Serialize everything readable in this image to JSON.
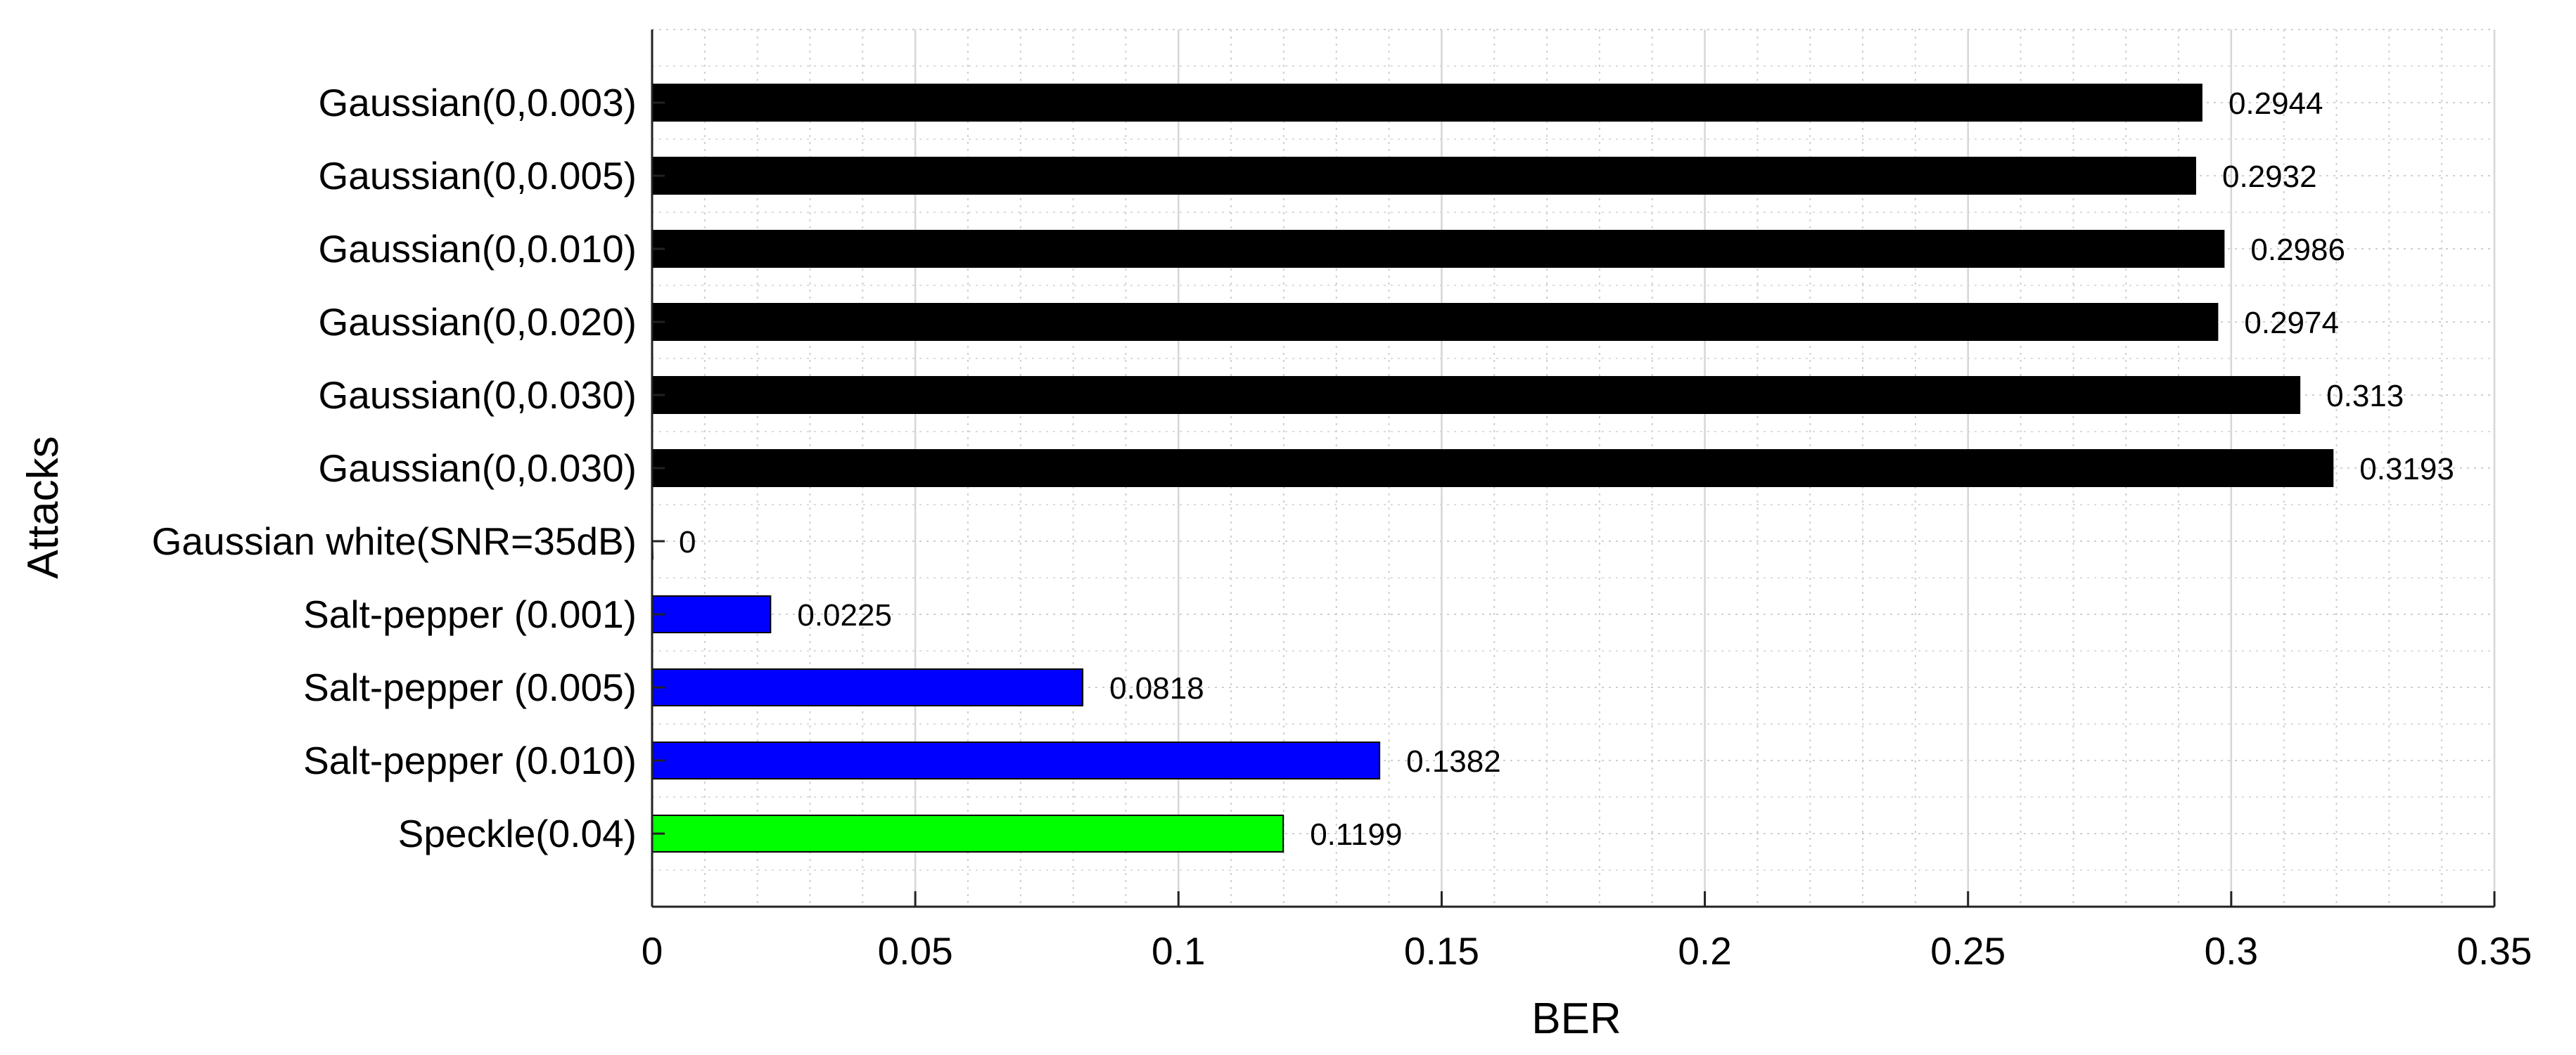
{
  "chart_data": {
    "type": "bar",
    "orientation": "horizontal",
    "title": "",
    "xlabel": "BER",
    "ylabel": "Attacks",
    "xlim": [
      0,
      0.35
    ],
    "x_ticks": [
      "0",
      "0.05",
      "0.1",
      "0.15",
      "0.2",
      "0.25",
      "0.3",
      "0.35"
    ],
    "x_tick_values": [
      0,
      0.05,
      0.1,
      0.15,
      0.2,
      0.25,
      0.3,
      0.35
    ],
    "grid": true,
    "minor_grid": true,
    "categories": [
      "Gaussian(0,0.003)",
      "Gaussian(0,0.005)",
      "Gaussian(0,0.010)",
      "Gaussian(0,0.020)",
      "Gaussian(0,0.030)",
      "Gaussian(0,0.030)",
      "Gaussian white(SNR=35dB)",
      "Salt-pepper (0.001)",
      "Salt-pepper (0.005)",
      "Salt-pepper (0.010)",
      "Speckle(0.04)"
    ],
    "values": [
      0.2944,
      0.2932,
      0.2986,
      0.2974,
      0.313,
      0.3193,
      0,
      0.0225,
      0.0818,
      0.1382,
      0.1199
    ],
    "value_labels": [
      "0.2944",
      "0.2932",
      "0.2986",
      "0.2974",
      "0.313",
      "0.3193",
      "0",
      "0.0225",
      "0.0818",
      "0.1382",
      "0.1199"
    ],
    "colors": [
      "#000000",
      "#000000",
      "#000000",
      "#000000",
      "#000000",
      "#000000",
      "#000000",
      "#0000ff",
      "#0000ff",
      "#0000ff",
      "#00ff00"
    ]
  }
}
